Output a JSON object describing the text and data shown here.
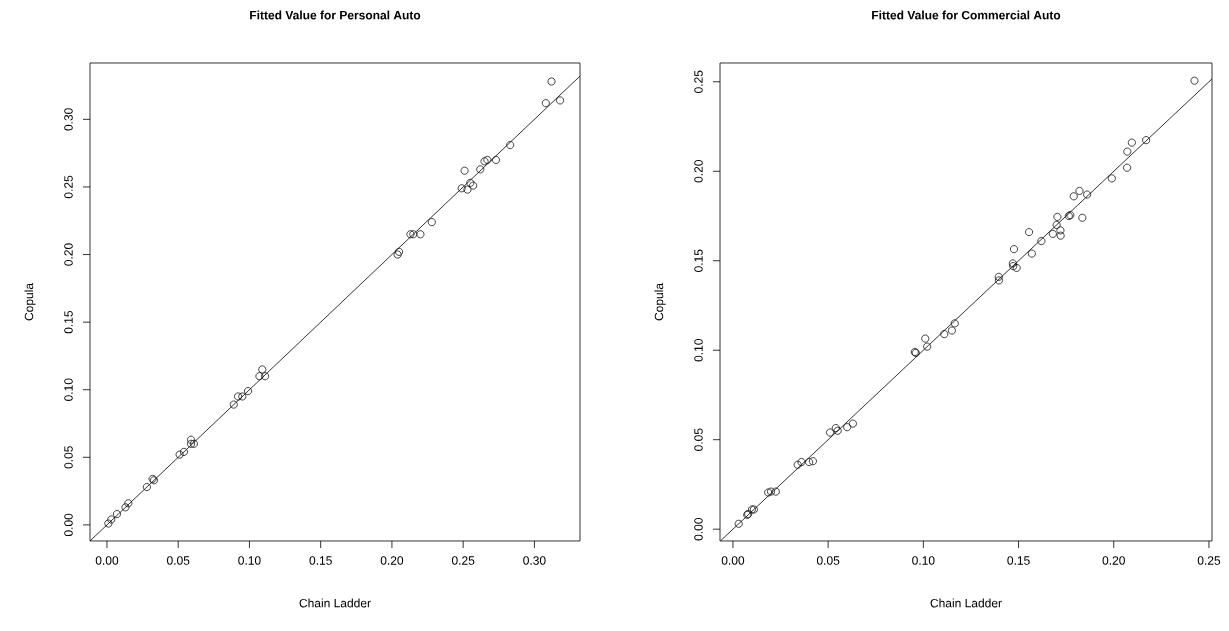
{
  "chart_data": [
    {
      "type": "scatter",
      "title": "Fitted Value for Personal Auto",
      "xlabel": "Chain Ladder",
      "ylabel": "Copula",
      "xlim": [
        -0.0119,
        0.332
      ],
      "ylim": [
        -0.0119,
        0.3417
      ],
      "xticks": [
        {
          "value": 0,
          "label": "0.00"
        },
        {
          "value": 0.05,
          "label": "0.05"
        },
        {
          "value": 0.1,
          "label": "0.10"
        },
        {
          "value": 0.15,
          "label": "0.15"
        },
        {
          "value": 0.2,
          "label": "0.20"
        },
        {
          "value": 0.25,
          "label": "0.25"
        },
        {
          "value": 0.3,
          "label": "0.30"
        }
      ],
      "yticks": [
        {
          "value": 0,
          "label": "0.00"
        },
        {
          "value": 0.05,
          "label": "0.05"
        },
        {
          "value": 0.1,
          "label": "0.10"
        },
        {
          "value": 0.15,
          "label": "0.15"
        },
        {
          "value": 0.2,
          "label": "0.20"
        },
        {
          "value": 0.25,
          "label": "0.25"
        },
        {
          "value": 0.3,
          "label": "0.30"
        }
      ],
      "series": [
        {
          "color": "#000000",
          "marker": "circle",
          "x": [
            0.001,
            0.003,
            0.007,
            0.013,
            0.015,
            0.028,
            0.032,
            0.033,
            0.051,
            0.054,
            0.059,
            0.059,
            0.061,
            0.089,
            0.092,
            0.095,
            0.099,
            0.107,
            0.111,
            0.109,
            0.204,
            0.205,
            0.213,
            0.215,
            0.22,
            0.228,
            0.249,
            0.251,
            0.253,
            0.255,
            0.257,
            0.262,
            0.265,
            0.267,
            0.273,
            0.283,
            0.308,
            0.312,
            0.318
          ],
          "values": [
            0.001,
            0.004,
            0.008,
            0.013,
            0.016,
            0.028,
            0.034,
            0.033,
            0.052,
            0.054,
            0.063,
            0.06,
            0.06,
            0.089,
            0.095,
            0.095,
            0.099,
            0.11,
            0.11,
            0.115,
            0.2,
            0.202,
            0.215,
            0.215,
            0.215,
            0.224,
            0.249,
            0.262,
            0.248,
            0.253,
            0.251,
            0.263,
            0.269,
            0.27,
            0.27,
            0.281,
            0.312,
            0.328,
            0.314
          ]
        },
        {
          "type": "line",
          "marker": "none",
          "color": "#000000",
          "x": [
            -0.0119,
            0.332
          ],
          "values": [
            -0.0119,
            0.332
          ]
        }
      ]
    },
    {
      "type": "scatter",
      "title": "Fitted Value for Commercial Auto",
      "xlabel": "Chain Ladder",
      "ylabel": "Copula",
      "xlim": [
        -0.0068,
        0.2516
      ],
      "ylim": [
        -0.0066,
        0.2605
      ],
      "xticks": [
        {
          "value": 0,
          "label": "0.00"
        },
        {
          "value": 0.05,
          "label": "0.05"
        },
        {
          "value": 0.1,
          "label": "0.10"
        },
        {
          "value": 0.15,
          "label": "0.15"
        },
        {
          "value": 0.2,
          "label": "0.20"
        },
        {
          "value": 0.25,
          "label": "0.25"
        }
      ],
      "yticks": [
        {
          "value": 0,
          "label": "0.00"
        },
        {
          "value": 0.05,
          "label": "0.05"
        },
        {
          "value": 0.1,
          "label": "0.10"
        },
        {
          "value": 0.15,
          "label": "0.15"
        },
        {
          "value": 0.2,
          "label": "0.20"
        },
        {
          "value": 0.25,
          "label": "0.25"
        }
      ],
      "series": [
        {
          "color": "#000000",
          "marker": "circle",
          "x": [
            0.003,
            0.0075,
            0.008,
            0.01,
            0.011,
            0.0185,
            0.02,
            0.0225,
            0.034,
            0.036,
            0.04,
            0.042,
            0.051,
            0.054,
            0.055,
            0.06,
            0.063,
            0.0955,
            0.096,
            0.101,
            0.102,
            0.111,
            0.115,
            0.1165,
            0.1396,
            0.1397,
            0.147,
            0.1476,
            0.149,
            0.1472,
            0.157,
            0.1555,
            0.162,
            0.168,
            0.17,
            0.1704,
            0.172,
            0.1721,
            0.1764,
            0.1772,
            0.1835,
            0.179,
            0.182,
            0.186,
            0.199,
            0.207,
            0.2071,
            0.2095,
            0.217,
            0.2424
          ],
          "values": [
            0.003,
            0.008,
            0.0085,
            0.011,
            0.011,
            0.0205,
            0.021,
            0.021,
            0.036,
            0.0375,
            0.0375,
            0.038,
            0.054,
            0.0565,
            0.055,
            0.057,
            0.059,
            0.099,
            0.0985,
            0.1065,
            0.102,
            0.109,
            0.111,
            0.115,
            0.141,
            0.139,
            0.1485,
            0.1565,
            0.146,
            0.147,
            0.154,
            0.166,
            0.161,
            0.165,
            0.17,
            0.1745,
            0.167,
            0.164,
            0.175,
            0.1755,
            0.174,
            0.186,
            0.189,
            0.187,
            0.196,
            0.202,
            0.211,
            0.216,
            0.2174,
            0.2506
          ]
        },
        {
          "type": "line",
          "marker": "none",
          "color": "#000000",
          "x": [
            -0.0066,
            0.2516
          ],
          "values": [
            -0.0066,
            0.2516
          ]
        }
      ]
    }
  ]
}
